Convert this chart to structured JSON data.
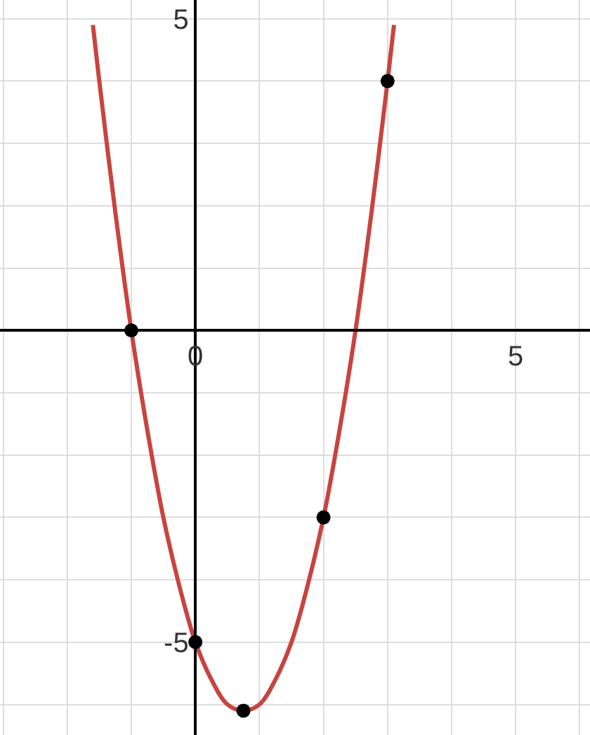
{
  "chart_data": {
    "type": "line",
    "series": [
      {
        "color": "#c74440",
        "marker": "none",
        "x": [
          -1.6,
          -1.5,
          -1.25,
          -1,
          -0.75,
          -0.5,
          -0.25,
          0,
          0.25,
          0.5,
          0.75,
          1,
          1.25,
          1.5,
          1.75,
          2,
          2.25,
          2.5,
          2.75,
          3,
          3.1
        ],
        "values": [
          4.9,
          4,
          1.9,
          0,
          -1.6,
          -3,
          -4.1,
          -5,
          -5.6,
          -6,
          -6.1,
          -6,
          -5.6,
          -5,
          -4.1,
          -3,
          -1.6,
          0,
          1.9,
          4,
          4.9
        ]
      },
      {
        "type": "scatter",
        "color": "#000000",
        "marker": "circle",
        "x": [
          -1,
          0,
          0.75,
          2,
          3
        ],
        "values": [
          0,
          -5,
          -6.1,
          -3,
          4
        ]
      }
    ],
    "xlim": [
      -3.05,
      6.16
    ],
    "ylim": [
      -6.49,
      5.3
    ],
    "xticks": [
      {
        "value": -3,
        "label": null
      },
      {
        "value": -2,
        "label": null
      },
      {
        "value": -1,
        "label": null
      },
      0,
      {
        "value": 1,
        "label": null
      },
      {
        "value": 2,
        "label": null
      },
      {
        "value": 3,
        "label": null
      },
      {
        "value": 4,
        "label": null
      },
      5,
      {
        "value": 6,
        "label": null
      }
    ],
    "yticks": [
      -5,
      {
        "value": -6,
        "label": null
      },
      {
        "value": -4,
        "label": null
      },
      {
        "value": -3,
        "label": null
      },
      {
        "value": -2,
        "label": null
      },
      {
        "value": -1,
        "label": null
      },
      {
        "value": 1,
        "label": null
      },
      {
        "value": 2,
        "label": null
      },
      {
        "value": 3,
        "label": null
      },
      {
        "value": 4,
        "label": null
      },
      5
    ],
    "grid": true
  }
}
